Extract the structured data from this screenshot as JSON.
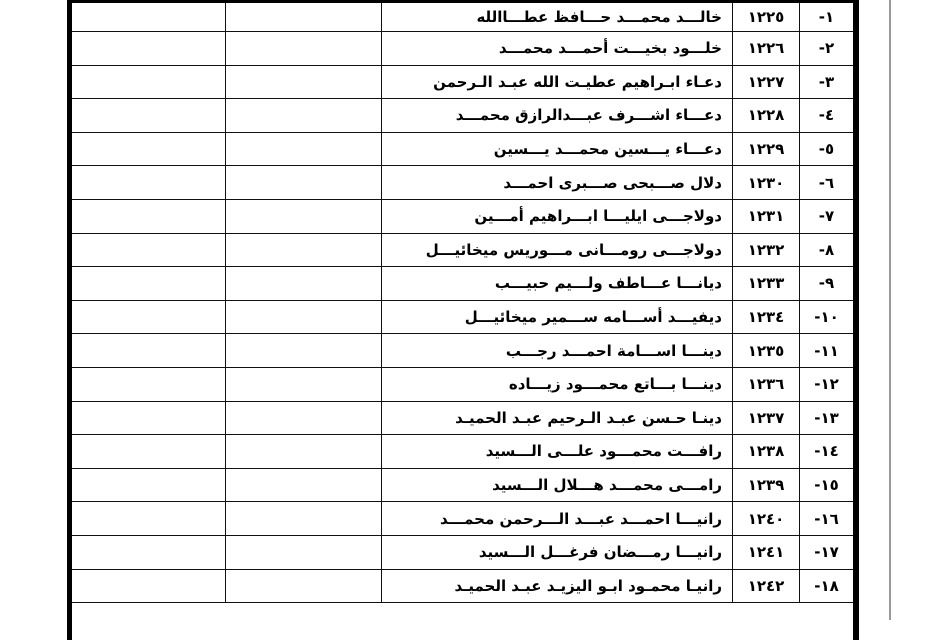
{
  "rows": [
    {
      "index": "-١",
      "number": "١٢٢٥",
      "name": "خالـــد محمـــد حـــافظ عطـــاالله"
    },
    {
      "index": "-٢",
      "number": "١٢٢٦",
      "name": "خلـــود بخيـــت أحمـــد محمـــد"
    },
    {
      "index": "-٣",
      "number": "١٢٢٧",
      "name": "دعـاء ابـراهيم عطيـت الله عبـد الـرحمن"
    },
    {
      "index": "-٤",
      "number": "١٢٢٨",
      "name": "دعـــاء اشـــرف عبـــدالرازق محمـــد"
    },
    {
      "index": "-٥",
      "number": "١٢٢٩",
      "name": "دعـــاء يـــسين محمـــد يـــسين"
    },
    {
      "index": "-٦",
      "number": "١٢٣٠",
      "name": "دلال صـــبحى صـــبرى احمـــد"
    },
    {
      "index": "-٧",
      "number": "١٢٣١",
      "name": "دولاجـــى ايليـــا ابـــراهيم أمـــين"
    },
    {
      "index": "-٨",
      "number": "١٢٣٢",
      "name": "دولاجـــى رومـــانى مـــوريس ميخائيـــل"
    },
    {
      "index": "-٩",
      "number": "١٢٣٣",
      "name": "ديانـــا عـــاطف ولـــيم حبيـــب"
    },
    {
      "index": "-١٠",
      "number": "١٢٣٤",
      "name": "ديفيـــد أســـامه ســـمير ميخائيـــل"
    },
    {
      "index": "-١١",
      "number": "١٢٣٥",
      "name": "دينـــا اســـامة احمـــد رجـــب"
    },
    {
      "index": "-١٢",
      "number": "١٢٣٦",
      "name": "دينـــا بـــاتع محمـــود زيـــاده"
    },
    {
      "index": "-١٣",
      "number": "١٢٣٧",
      "name": "دينـا حـسن عبـد الـرحيم عبـد الحميـد"
    },
    {
      "index": "-١٤",
      "number": "١٢٣٨",
      "name": "رافـــت محمـــود علـــى الـــسيد"
    },
    {
      "index": "-١٥",
      "number": "١٢٣٩",
      "name": "رامـــى محمـــد هـــلال الـــسيد"
    },
    {
      "index": "-١٦",
      "number": "١٢٤٠",
      "name": "رانيـــا احمـــد عبـــد الـــرحمن محمـــد"
    },
    {
      "index": "-١٧",
      "number": "١٢٤١",
      "name": "رانيـــا رمـــضان فرغـــل الـــسيد"
    },
    {
      "index": "-١٨",
      "number": "١٢٤٢",
      "name": "رانيـا محمـود ابـو اليزيـد عبـد الحميـد"
    }
  ]
}
